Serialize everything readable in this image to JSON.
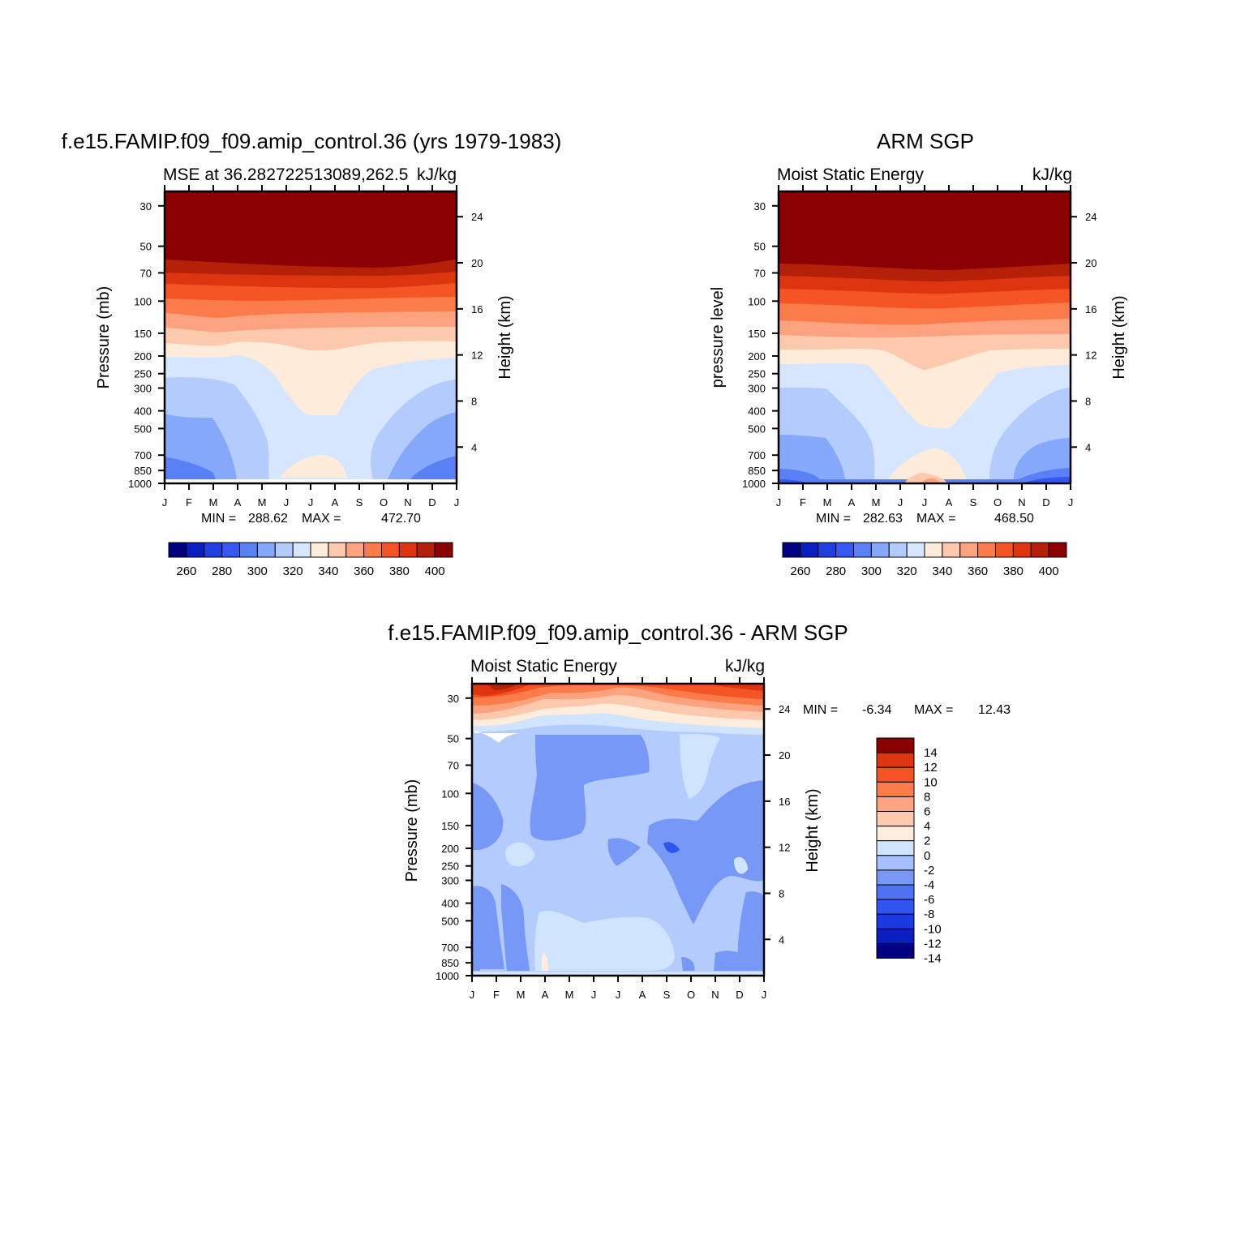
{
  "colors": {
    "model_scale": [
      "#000080",
      "#0a1fbf",
      "#1f3fe0",
      "#3558f0",
      "#5a80f5",
      "#85a8fa",
      "#b3cbfd",
      "#d6e6ff",
      "#feebda",
      "#fdc9ad",
      "#fca27e",
      "#fc7b4a",
      "#f55425",
      "#dc3510",
      "#b52008",
      "#8b0000"
    ],
    "diff_scale": [
      "#000080",
      "#0a1fbf",
      "#1a39e0",
      "#2f54f0",
      "#4f72f3",
      "#7798f7",
      "#a6c0fb",
      "#d0e3ff",
      "#feecdd",
      "#fdc9ad",
      "#fca27e",
      "#fc7b4a",
      "#f55425",
      "#dc3510",
      "#8b0000"
    ]
  },
  "chart_data": [
    {
      "type": "heatmap",
      "panel": "model",
      "title": "f.e15.FAMIP.f09_f09.amip_control.36 (yrs 1979-1983)",
      "subtitle_left": "MSE at 36.282722513089,262.5",
      "subtitle_right": "kJ/kg",
      "ylabel": "Pressure (mb)",
      "ylabel_right": "Height (km)",
      "x_ticks": [
        "J",
        "F",
        "M",
        "A",
        "M",
        "J",
        "J",
        "A",
        "S",
        "O",
        "N",
        "D",
        "J"
      ],
      "y_ticks": [
        "30",
        "50",
        "70",
        "100",
        "150",
        "200",
        "250",
        "300",
        "400",
        "500",
        "700",
        "850",
        "1000"
      ],
      "y_ticks_right": [
        "24",
        "20",
        "16",
        "12",
        "8",
        "4"
      ],
      "y_scale": "log",
      "stats": {
        "min_label": "MIN =",
        "min": "288.62",
        "max_label": "MAX =",
        "max": "472.70"
      },
      "colorbar_labels": [
        "260",
        "280",
        "300",
        "320",
        "340",
        "360",
        "380",
        "400"
      ]
    },
    {
      "type": "heatmap",
      "panel": "obs",
      "title": "ARM SGP",
      "subtitle_left": "Moist Static Energy",
      "subtitle_right": "kJ/kg",
      "ylabel": "pressure level",
      "ylabel_right": "Height (km)",
      "x_ticks": [
        "J",
        "F",
        "M",
        "A",
        "M",
        "J",
        "J",
        "A",
        "S",
        "O",
        "N",
        "D",
        "J"
      ],
      "y_ticks": [
        "30",
        "50",
        "70",
        "100",
        "150",
        "200",
        "250",
        "300",
        "400",
        "500",
        "700",
        "850",
        "1000"
      ],
      "y_ticks_right": [
        "24",
        "20",
        "16",
        "12",
        "8",
        "4"
      ],
      "y_scale": "log",
      "stats": {
        "min_label": "MIN =",
        "min": "282.63",
        "max_label": "MAX =",
        "max": "468.50"
      },
      "colorbar_labels": [
        "260",
        "280",
        "300",
        "320",
        "340",
        "360",
        "380",
        "400"
      ]
    },
    {
      "type": "heatmap",
      "panel": "difference",
      "title": "f.e15.FAMIP.f09_f09.amip_control.36 - ARM SGP",
      "subtitle_left": "Moist Static Energy",
      "subtitle_right": "kJ/kg",
      "ylabel": "Pressure (mb)",
      "ylabel_right": "Height (km)",
      "x_ticks": [
        "J",
        "F",
        "M",
        "A",
        "M",
        "J",
        "J",
        "A",
        "S",
        "O",
        "N",
        "D",
        "J"
      ],
      "y_ticks": [
        "30",
        "50",
        "70",
        "100",
        "150",
        "200",
        "250",
        "300",
        "400",
        "500",
        "700",
        "850",
        "1000"
      ],
      "y_ticks_right": [
        "24",
        "20",
        "16",
        "12",
        "8",
        "4"
      ],
      "y_scale": "log",
      "stats": {
        "min_label": "MIN =",
        "min": "-6.34",
        "max_label": "MAX =",
        "max": "12.43"
      },
      "colorbar_labels": [
        "14",
        "12",
        "10",
        "8",
        "6",
        "4",
        "2",
        "0",
        "-2",
        "-4",
        "-6",
        "-8",
        "-10",
        "-12",
        "-14"
      ]
    }
  ]
}
